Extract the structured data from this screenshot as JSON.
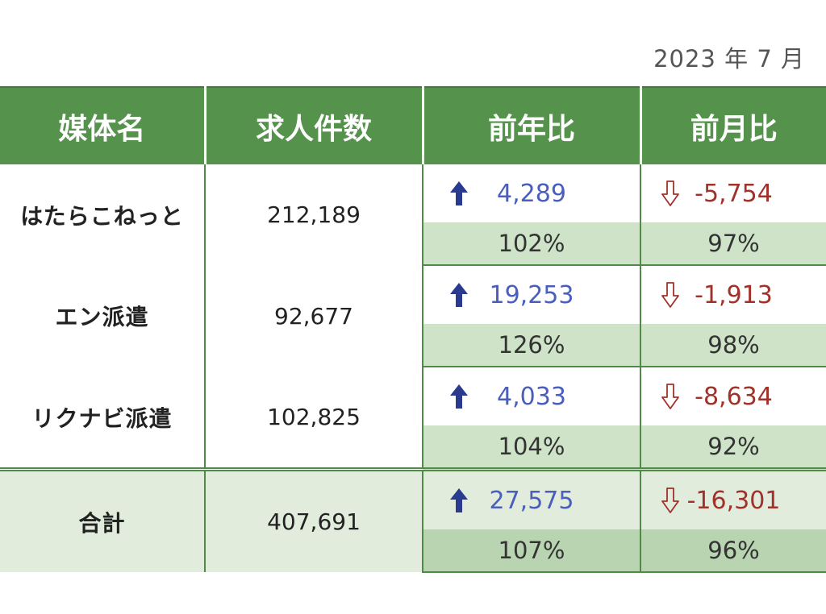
{
  "date_label": "2023 年 7 月",
  "headers": [
    "媒体名",
    "求人件数",
    "前年比",
    "前月比"
  ],
  "rows": [
    {
      "name": "はたらこねっと",
      "count": "212,189",
      "yoy_diff": "4,289",
      "yoy_pct": "102%",
      "mom_diff": "-5,754",
      "mom_pct": "97%"
    },
    {
      "name": "エン派遣",
      "count": "92,677",
      "yoy_diff": "19,253",
      "yoy_pct": "126%",
      "mom_diff": "-1,913",
      "mom_pct": "98%"
    },
    {
      "name": "リクナビ派遣",
      "count": "102,825",
      "yoy_diff": "4,033",
      "yoy_pct": "104%",
      "mom_diff": "-8,634",
      "mom_pct": "92%"
    }
  ],
  "total": {
    "name": "合計",
    "count": "407,691",
    "yoy_diff": "27,575",
    "yoy_pct": "107%",
    "mom_diff": "-16,301",
    "mom_pct": "96%"
  },
  "icons": {
    "up": "arrow-up-icon",
    "down": "arrow-down-outline-icon"
  },
  "colors": {
    "header_green": "#55924c",
    "pct_fill": "#cfe3c9",
    "total_fill": "#e1ecdd",
    "up_blue": "#4a5ebd",
    "down_red": "#a0322a",
    "up_arrow": "#2a3a8f"
  }
}
